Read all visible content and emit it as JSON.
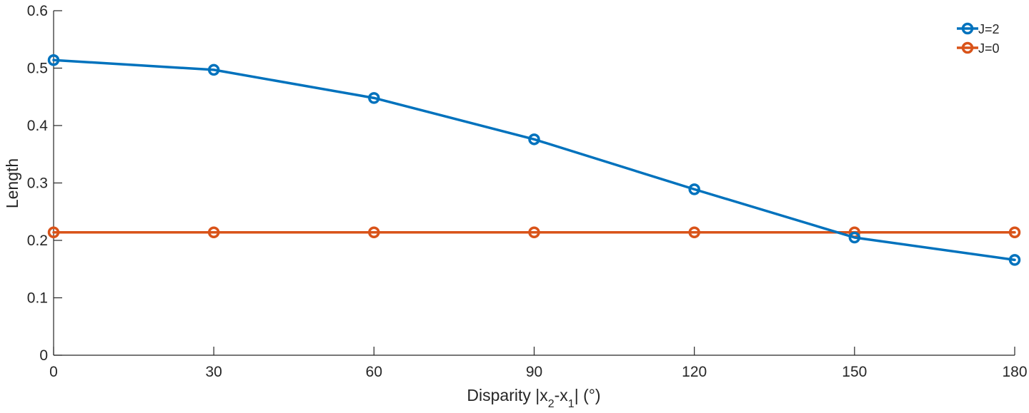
{
  "chart_data": {
    "type": "line",
    "title": "",
    "xlabel": "Disparity |x2-x1| (°)",
    "xlabel_parts": {
      "prefix": "Disparity |x",
      "sub1": "2",
      "mid": "-x",
      "sub2": "1",
      "suffix": "| (°)"
    },
    "ylabel": "Length",
    "xlim": [
      0,
      180
    ],
    "ylim": [
      0,
      0.6
    ],
    "xticks": [
      0,
      30,
      60,
      90,
      120,
      150,
      180
    ],
    "xtick_labels": [
      "0",
      "30",
      "60",
      "90",
      "120",
      "150",
      "180"
    ],
    "yticks": [
      0,
      0.1,
      0.2,
      0.3,
      0.4,
      0.5,
      0.6
    ],
    "ytick_labels": [
      "0",
      "0.1",
      "0.2",
      "0.3",
      "0.4",
      "0.5",
      "0.6"
    ],
    "grid": false,
    "legend_position": "top-right",
    "x": [
      0,
      30,
      60,
      90,
      120,
      150,
      180
    ],
    "series": [
      {
        "name": "J=2",
        "color": "#0072BD",
        "marker": "circle",
        "values": [
          0.514,
          0.497,
          0.448,
          0.376,
          0.289,
          0.205,
          0.166
        ]
      },
      {
        "name": "J=0",
        "color": "#D95319",
        "marker": "circle",
        "values": [
          0.214,
          0.214,
          0.214,
          0.214,
          0.214,
          0.214,
          0.214
        ]
      }
    ]
  }
}
